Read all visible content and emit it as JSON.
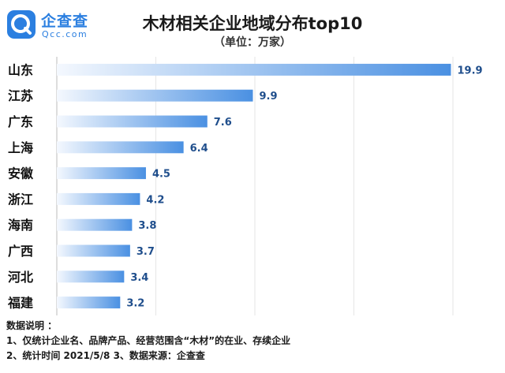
{
  "brand": {
    "name": "企查查",
    "subname": "Qcc.com"
  },
  "chart_data": {
    "type": "bar",
    "orientation": "horizontal",
    "title": "木材相关企业地域分布top10",
    "subtitle": "（单位：万家）",
    "categories": [
      "山东",
      "江苏",
      "广东",
      "上海",
      "安徽",
      "浙江",
      "海南",
      "广西",
      "河北",
      "福建"
    ],
    "values": [
      19.9,
      9.9,
      7.6,
      6.4,
      4.5,
      4.2,
      3.8,
      3.7,
      3.4,
      3.2
    ],
    "value_labels": [
      "19.9",
      "9.9",
      "7.6",
      "6.4",
      "4.5",
      "4.2",
      "3.8",
      "3.7",
      "3.4",
      "3.2"
    ],
    "xlim": [
      0,
      20
    ],
    "grid": true,
    "legend": "none"
  },
  "notes": {
    "heading": "数据说明 ：",
    "line1": "1、仅统计企业名、品牌产品、经营范围含“木材”的在业、存续企业",
    "line2": "2、统计时间  2021/5/8       3、数据来源：企查查"
  },
  "colors": {
    "bar_start": "#f4f8fe",
    "bar_end": "#4a90e2",
    "label": "#1f4e8c",
    "grid": "#e6e6e6",
    "axis": "#bbbbbb"
  }
}
